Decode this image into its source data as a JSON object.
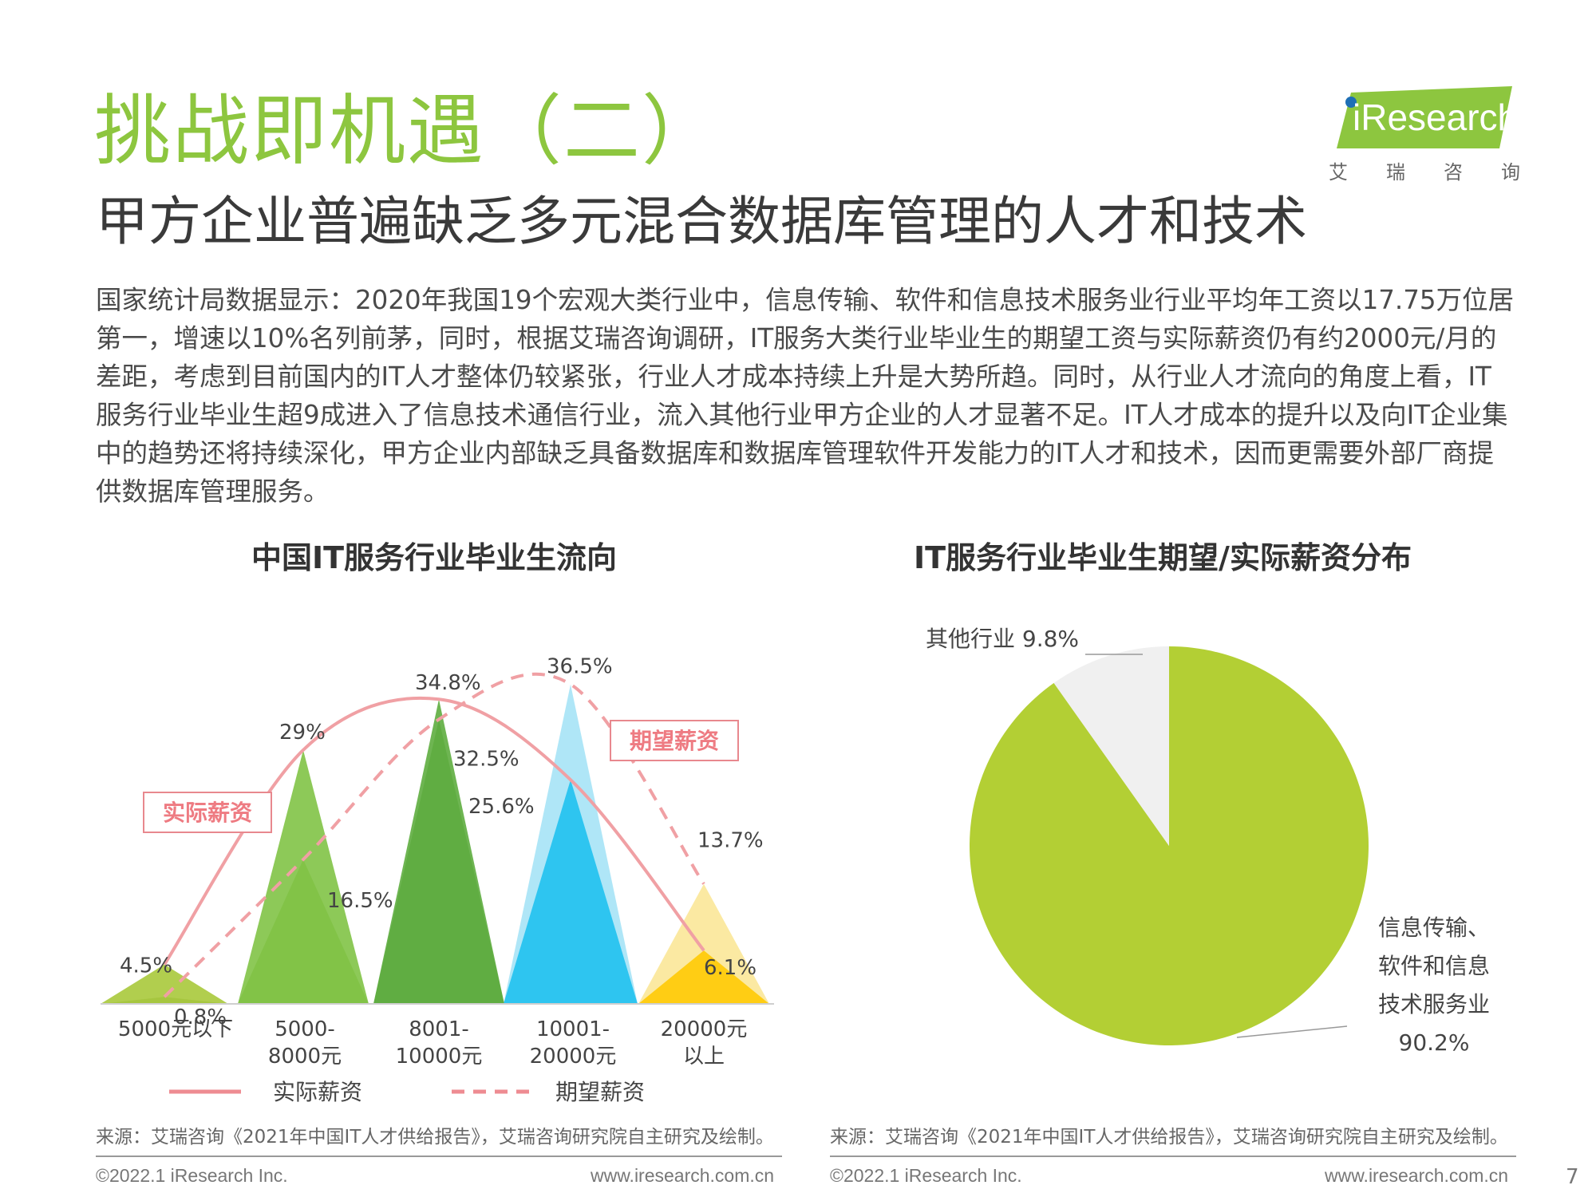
{
  "header": {
    "title": "挑战即机遇（二）",
    "subtitle": "甲方企业普遍缺乏多元混合数据库管理的人才和技术"
  },
  "logo": {
    "brand": "iResearch",
    "sub_chars": [
      "艾",
      "瑞",
      "咨",
      "询"
    ]
  },
  "body_text": "国家统计局数据显示：2020年我国19个宏观大类行业中，信息传输、软件和信息技术服务业行业平均年工资以17.75万位居第一，增速以10%名列前茅，同时，根据艾瑞咨询调研，IT服务大类行业毕业生的期望工资与实际薪资仍有约2000元/月的差距，考虑到目前国内的IT人才整体仍较紧张，行业人才成本持续上升是大势所趋。同时，从行业人才流向的角度上看，IT服务行业毕业生超9成进入了信息技术通信行业，流入其他行业甲方企业的人才显著不足。IT人才成本的提升以及向IT企业集中的趋势还将持续深化，甲方企业内部缺乏具备数据库和数据库管理软件开发能力的IT人才和技术，因而更需要外部厂商提供数据库管理服务。",
  "chart_data": [
    {
      "type": "area",
      "title": "中国IT服务行业毕业生流向",
      "categories": [
        "5000元以下",
        "5000-8000元",
        "8001-10000元",
        "10001-20000元",
        "20000元以上"
      ],
      "category_lines": [
        [
          "5000元以下"
        ],
        [
          "5000-",
          "8000元"
        ],
        [
          "8001-",
          "10000元"
        ],
        [
          "10001-",
          "20000元"
        ],
        [
          "20000元",
          "以上"
        ]
      ],
      "series": [
        {
          "name": "实际薪资",
          "values": [
            4.5,
            29,
            34.8,
            25.6,
            6.1
          ],
          "labels": [
            "4.5%",
            "29%",
            "34.8%",
            "25.6%",
            "6.1%"
          ],
          "color": "#f0a0a4"
        },
        {
          "name": "期望薪资",
          "values": [
            0.8,
            16.5,
            32.5,
            36.5,
            13.7
          ],
          "labels": [
            "0.8%",
            "16.5%",
            "32.5%",
            "36.5%",
            "13.7%"
          ],
          "color": "#f0a0a4"
        }
      ],
      "callouts": [
        "实际薪资",
        "期望薪资"
      ],
      "legend": [
        "实际薪资",
        "期望薪资"
      ],
      "colors": {
        "actual_peaks": [
          "#a9c93b",
          "#7dc241",
          "#5aab3a",
          "#1cc0ef",
          "#ffc800"
        ],
        "expected_peaks": [
          "#8aaa5a",
          "#9cc46a",
          "#82b272",
          "#a8e4f6",
          "#fbe79a"
        ]
      },
      "ylim": [
        0,
        40
      ]
    },
    {
      "type": "pie",
      "title": "IT服务行业毕业生期望/实际薪资分布",
      "slices": [
        {
          "label_lines": [
            "信息传输、",
            "软件和信息",
            "技术服务业",
            "90.2%"
          ],
          "value": 90.2,
          "color": "#b3cf34"
        },
        {
          "label": "其他行业 9.8%",
          "value": 9.8,
          "color": "#f0f0f0"
        }
      ]
    }
  ],
  "sources": {
    "left": "来源：艾瑞咨询《2021年中国IT人才供给报告》，艾瑞咨询研究院自主研究及绘制。",
    "right": "来源：艾瑞咨询《2021年中国IT人才供给报告》，艾瑞咨询研究院自主研究及绘制。"
  },
  "footer": {
    "copyright": "©2022.1 iResearch Inc.",
    "url": "www.iresearch.com.cn",
    "page": "7"
  }
}
